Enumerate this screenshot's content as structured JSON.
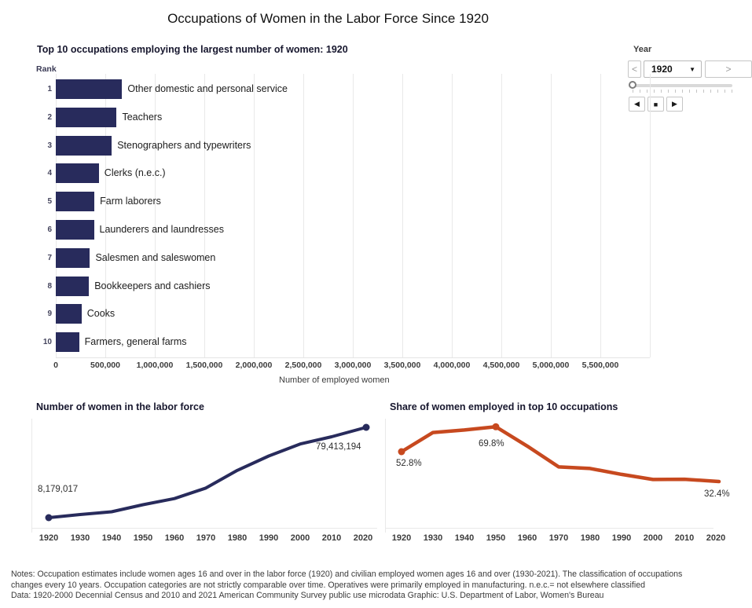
{
  "ui": {
    "page_title": "Occupations of Women in the Labor Force Since 1920",
    "year_control": {
      "label": "Year",
      "selected_year": "1920",
      "prev": "<",
      "next": ">",
      "caret": "▼",
      "step_back": "◀",
      "stop": "■",
      "play": "▶"
    },
    "notes": {
      "line1": "Notes: Occupation estimates include women ages 16 and over in the labor force (1920) and civilian employed women ages 16 and over (1930-2021). The classification of occupations",
      "line2": "changes every 10 years. Occupation categories are not strictly comparable over time. Operatives were primarily employed in manufacturing. n.e.c.= not elsewhere classified",
      "line3": "Data: 1920-2000 Decennial Census and 2010 and 2021 American Community Survey public use microdata  Graphic: U.S. Department of Labor, Women's Bureau"
    }
  },
  "colors": {
    "navy": "#282b5c",
    "orange": "#c7491f",
    "gridline": "#e9e9e9"
  },
  "chart_data": [
    {
      "type": "bar",
      "orientation": "horizontal",
      "title": "Top 10 occupations employing the largest number of women: 1920",
      "rank_axis_label": "Rank",
      "xlabel": "Number of employed women",
      "ranks": [
        "1",
        "2",
        "3",
        "4",
        "5",
        "6",
        "7",
        "8",
        "9",
        "10"
      ],
      "categories": [
        "Other domestic and personal service",
        "Teachers",
        "Stenographers and typewriters",
        "Clerks (n.e.c.)",
        "Farm laborers",
        "Launderers and laundresses",
        "Salesmen and saleswomen",
        "Bookkeepers and cashiers",
        "Cooks",
        "Farmers, general farms"
      ],
      "values": [
        670000,
        615000,
        565000,
        435000,
        390000,
        385000,
        345000,
        335000,
        260000,
        235000
      ],
      "x_ticks": [
        "0",
        "500,000",
        "1,000,000",
        "1,500,000",
        "2,000,000",
        "2,500,000",
        "3,000,000",
        "3,500,000",
        "4,000,000",
        "4,500,000",
        "5,000,000",
        "5,500,000"
      ],
      "x_tick_values": [
        0,
        500000,
        1000000,
        1500000,
        2000000,
        2500000,
        3000000,
        3500000,
        4000000,
        4500000,
        5000000,
        5500000
      ],
      "xlim": [
        0,
        6000000
      ],
      "grid": "vertical",
      "bar_color": "#282b5c"
    },
    {
      "type": "line",
      "title": "Number of women in the labor force",
      "x": [
        1920,
        1930,
        1940,
        1950,
        1960,
        1970,
        1980,
        1990,
        2000,
        2010,
        2021
      ],
      "x_ticks": [
        "1920",
        "1930",
        "1940",
        "1950",
        "1960",
        "1970",
        "1980",
        "1990",
        "2000",
        "2010",
        "2020"
      ],
      "values": [
        8179017,
        10632227,
        12845259,
        18408000,
        23240000,
        31543000,
        45487000,
        56829000,
        66303000,
        72000000,
        79413194
      ],
      "point_labels": {
        "first": "8,179,017",
        "last": "79,413,194"
      },
      "marker_points": "first and last",
      "line_color": "#282b5c",
      "grid": "off"
    },
    {
      "type": "line",
      "title": "Share of women employed in top 10 occupations",
      "unit": "%",
      "x": [
        1920,
        1930,
        1940,
        1950,
        1960,
        1970,
        1980,
        1990,
        2000,
        2010,
        2021
      ],
      "x_ticks": [
        "1920",
        "1930",
        "1940",
        "1950",
        "1960",
        "1970",
        "1980",
        "1990",
        "2000",
        "2010",
        "2020"
      ],
      "values": [
        52.8,
        65.9,
        67.6,
        69.8,
        56.6,
        42.4,
        41.3,
        37.3,
        33.8,
        34.0,
        32.4
      ],
      "point_labels": {
        "first": "52.8%",
        "peak": "69.8%",
        "last": "32.4%"
      },
      "marker_points": "first and 1950 peak",
      "line_color": "#c7491f",
      "grid": "off"
    }
  ]
}
